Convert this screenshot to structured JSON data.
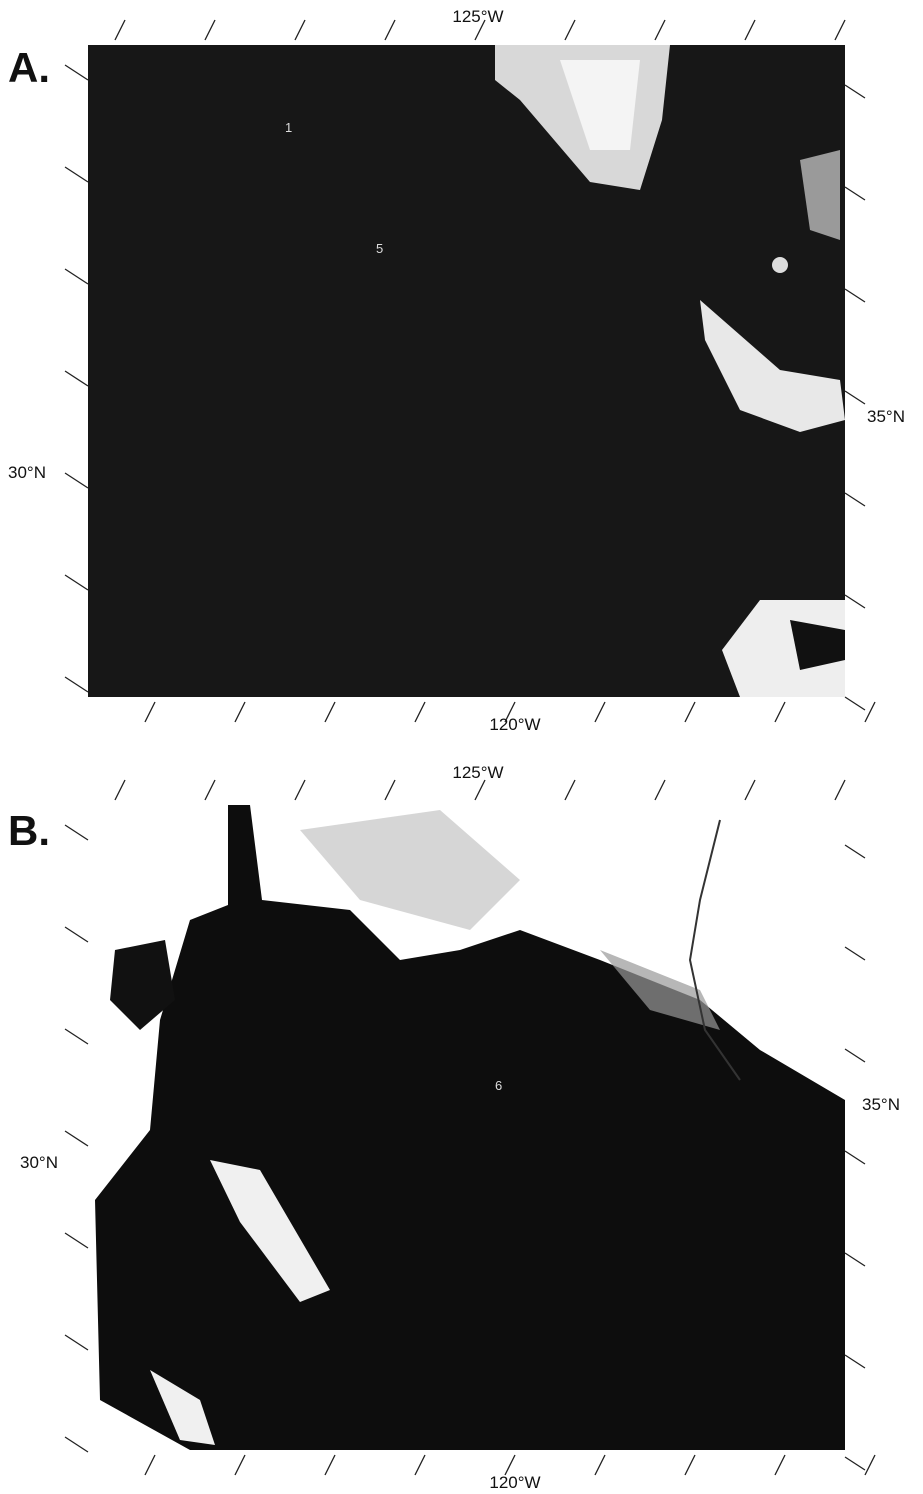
{
  "panels": [
    {
      "label": "A.",
      "top_label": "125°W",
      "bottom_label": "120°W",
      "left_label": "30°N",
      "right_label": "35°N",
      "markers": [
        "1",
        "5"
      ]
    },
    {
      "label": "B.",
      "top_label": "125°W",
      "bottom_label": "120°W",
      "left_label": "30°N",
      "right_label": "35°N",
      "markers": [
        "6"
      ]
    }
  ]
}
